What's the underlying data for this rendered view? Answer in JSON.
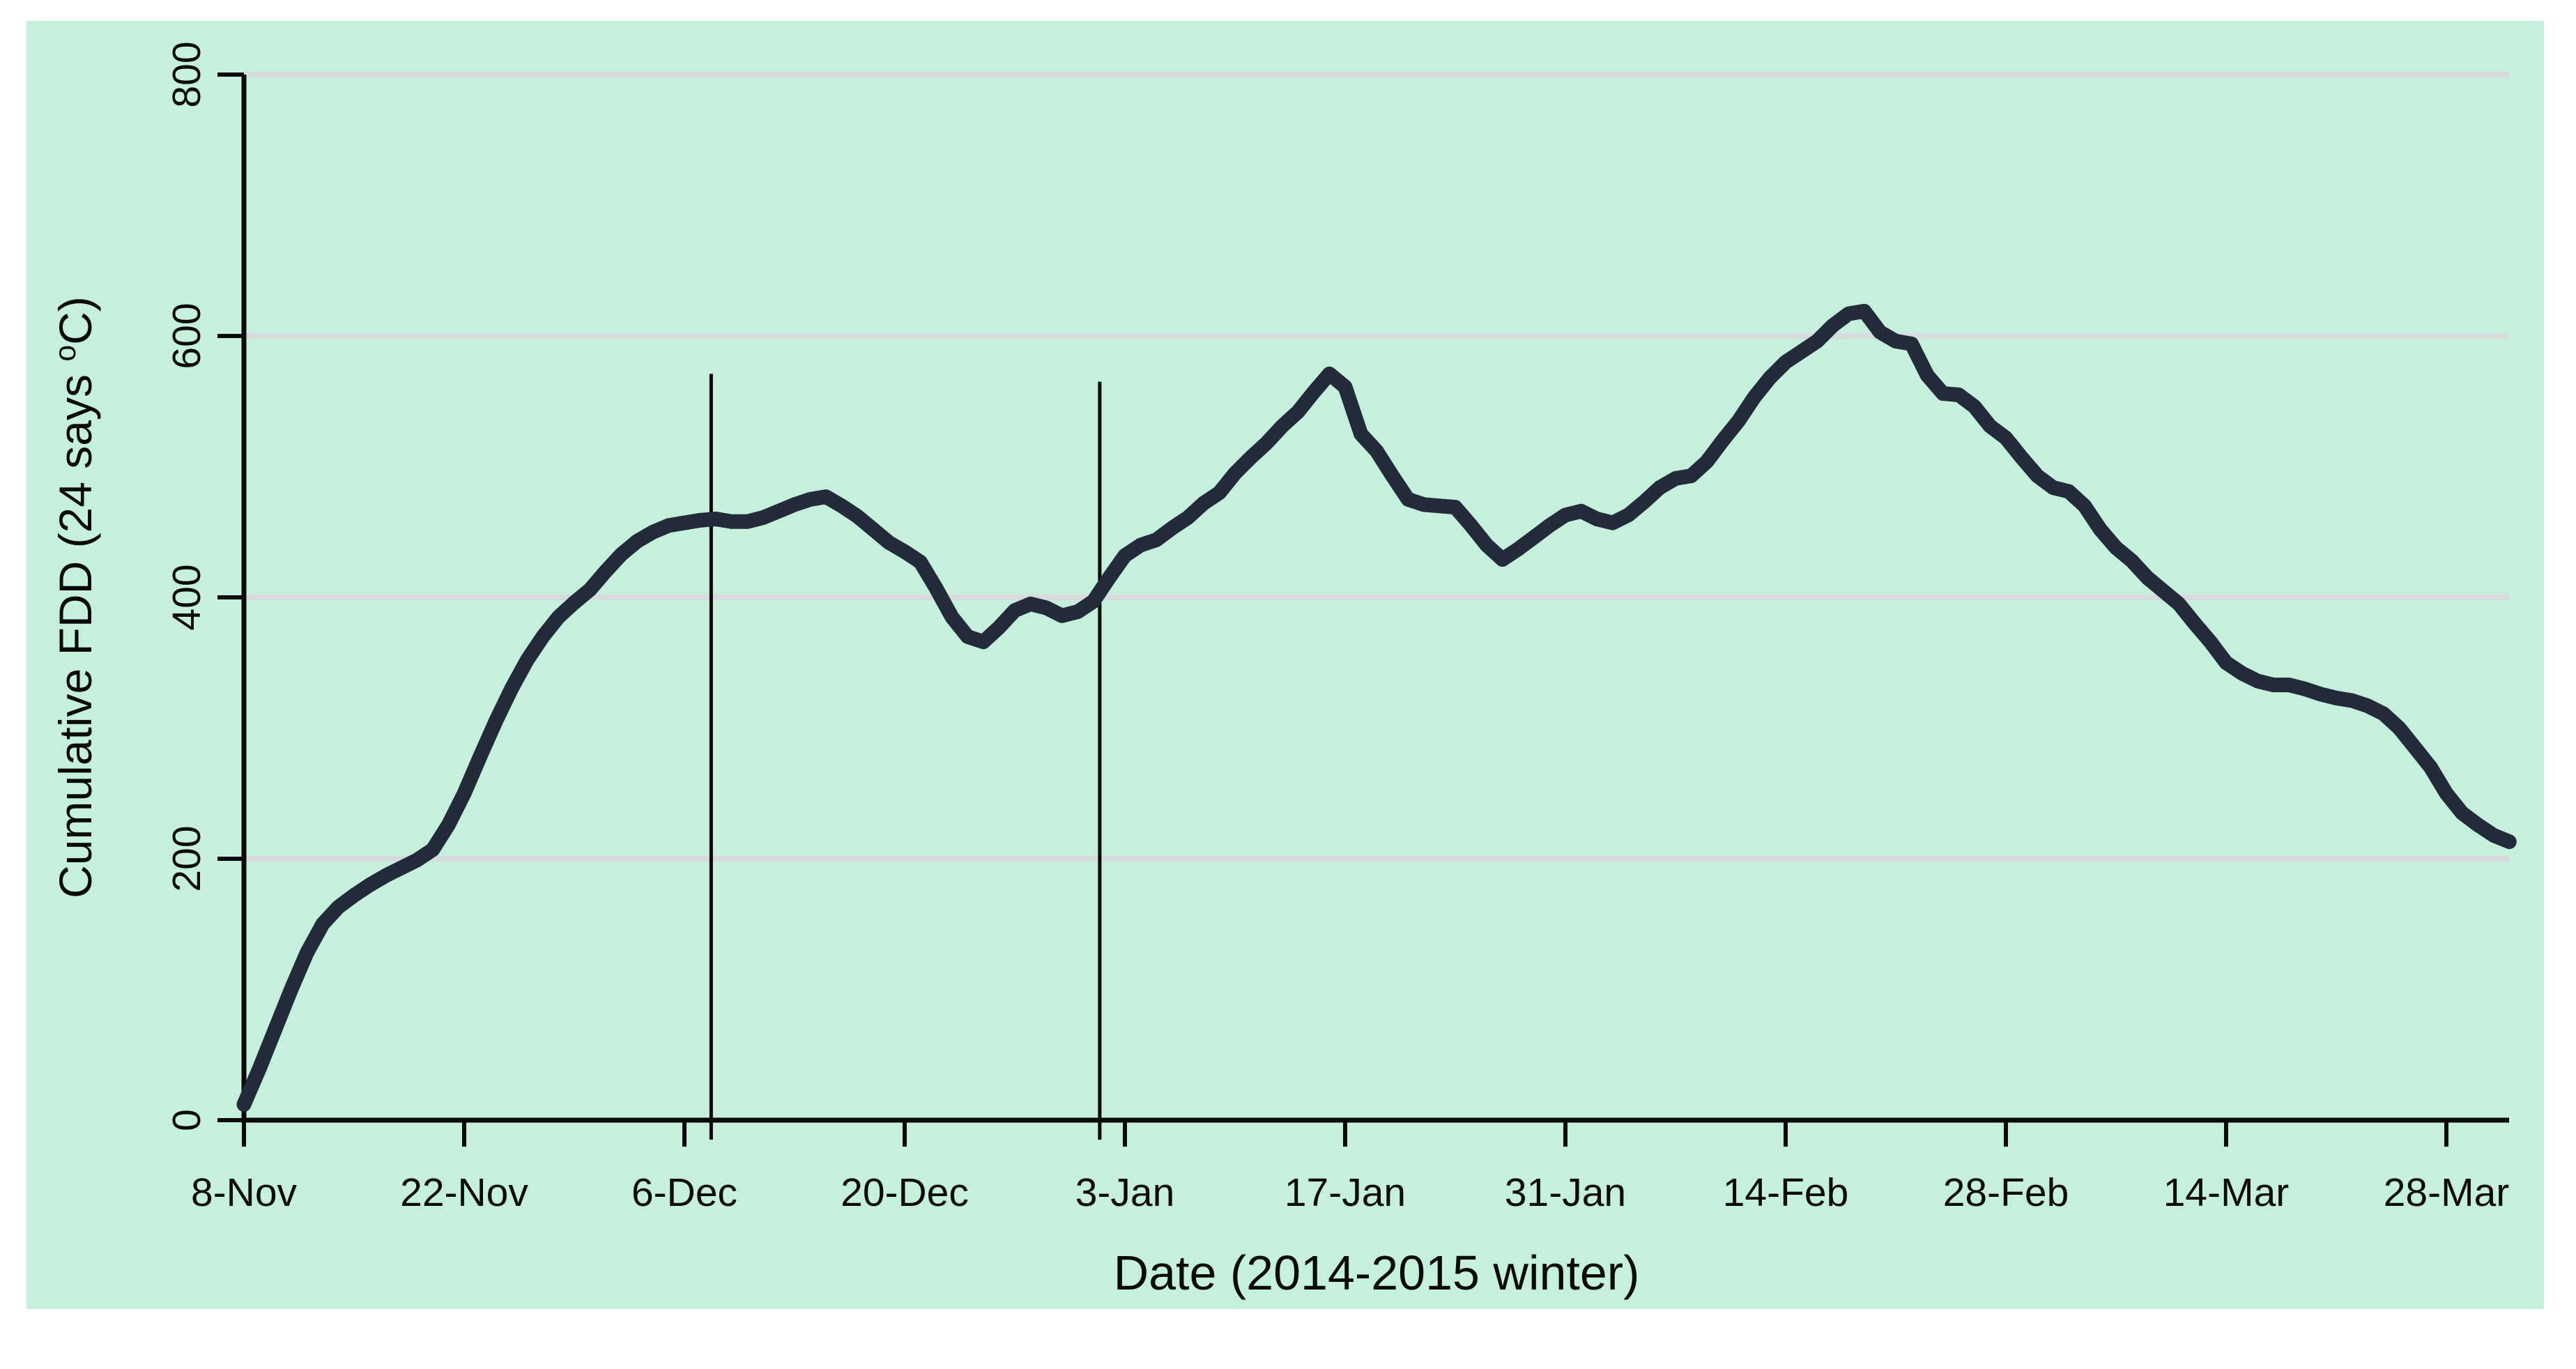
{
  "figure": {
    "page_background": "#ffffff",
    "plot_background": "#c5f1dc",
    "gridline_color": "#d9dadb",
    "axis_color": "#0a0a0a",
    "annotation_line_color": "#0a0a0a"
  },
  "chart_data": {
    "type": "line",
    "title": "",
    "xlabel": "Date  (2014-2015 winter)",
    "ylabel_prefix": "Cumulative FDD (24 says ",
    "ylabel_sup": "o",
    "ylabel_suffix": "C)",
    "ylabel_plain": "Cumulative FDD (24 says oC)",
    "x_tick_labels": [
      "8-Nov",
      "22-Nov",
      "6-Dec",
      "20-Dec",
      "3-Jan",
      "17-Jan",
      "31-Jan",
      "14-Feb",
      "28-Feb",
      "14-Mar",
      "28-Mar"
    ],
    "x_tick_interval_days": 14,
    "y_tick_labels": [
      "0",
      "200",
      "400",
      "600",
      "800"
    ],
    "y_ticks": [
      0,
      200,
      400,
      600,
      800
    ],
    "ylim": [
      0,
      800
    ],
    "grid": "horizontal-only",
    "legend": "none",
    "series": [
      {
        "name": "Cumulative FDD",
        "color": "#232a39",
        "start_date": "8-Nov-2014",
        "end_date": "1-Apr-2015",
        "sampling": "daily",
        "values": [
          12,
          40,
          70,
          100,
          128,
          150,
          163,
          172,
          180,
          187,
          193,
          199,
          207,
          226,
          250,
          278,
          305,
          330,
          352,
          370,
          385,
          396,
          406,
          420,
          433,
          443,
          450,
          455,
          457,
          459,
          460,
          458,
          458,
          461,
          466,
          471,
          475,
          477,
          470,
          462,
          452,
          442,
          435,
          427,
          407,
          385,
          370,
          366,
          377,
          390,
          395,
          392,
          386,
          389,
          397,
          415,
          432,
          440,
          444,
          453,
          461,
          472,
          480,
          495,
          507,
          518,
          531,
          542,
          557,
          571,
          561,
          525,
          512,
          493,
          475,
          471,
          470,
          469,
          455,
          440,
          429,
          437,
          446,
          455,
          463,
          466,
          460,
          457,
          463,
          473,
          484,
          491,
          493,
          504,
          520,
          535,
          553,
          568,
          580,
          588,
          596,
          608,
          617,
          619,
          603,
          596,
          594,
          570,
          556,
          555,
          546,
          531,
          522,
          507,
          493,
          484,
          481,
          470,
          452,
          438,
          428,
          415,
          405,
          395,
          380,
          366,
          350,
          342,
          336,
          333,
          333,
          330,
          326,
          323,
          321,
          317,
          311,
          300,
          285,
          270,
          250,
          235,
          226,
          218,
          213
        ]
      }
    ],
    "annotations": [
      {
        "type": "vertical-line",
        "date": "8-Dec",
        "day_index": 29.7,
        "from_value": 0,
        "to_value": 571
      },
      {
        "type": "vertical-line",
        "date": "1-Jan",
        "day_index": 54.4,
        "from_value": 0,
        "to_value": 565
      }
    ]
  }
}
